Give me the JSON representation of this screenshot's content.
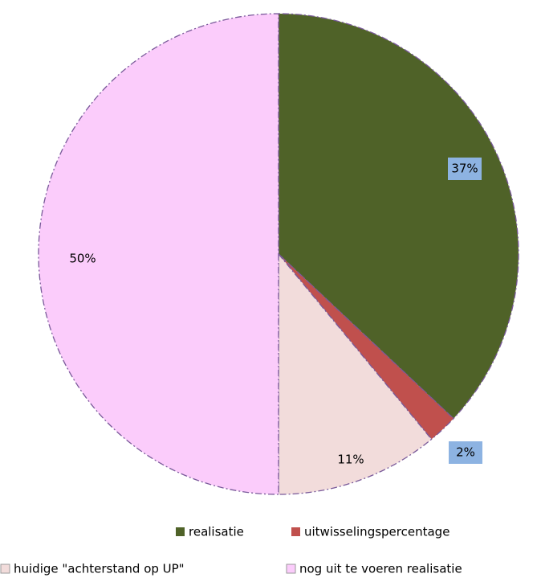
{
  "chart_data": {
    "type": "pie",
    "categories": [
      "realisatie",
      "uitwisselingspercentage",
      "huidige \"achterstand op UP\"",
      "nog uit te voeren realisatie"
    ],
    "values": [
      37,
      2,
      11,
      50
    ],
    "value_labels": [
      "37%",
      "2%",
      "11%",
      "50%"
    ],
    "colors": [
      "#4f6228",
      "#c0504d",
      "#f2dcdb",
      "#fbccfb"
    ]
  }
}
